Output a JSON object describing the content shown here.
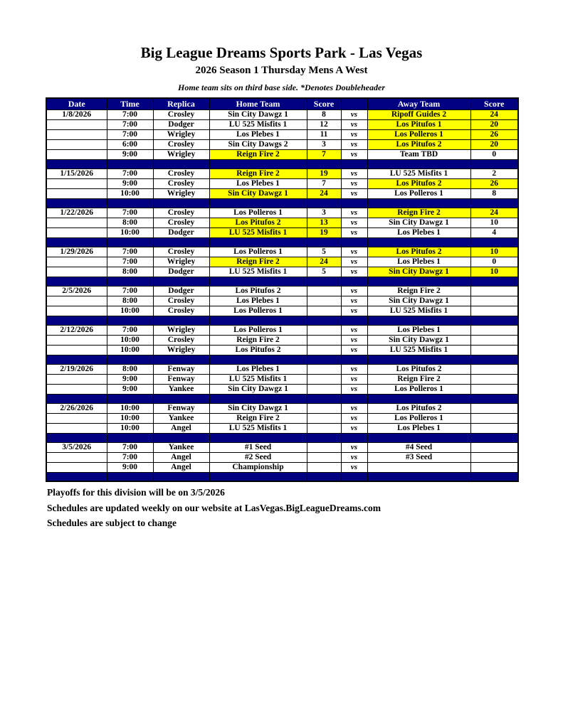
{
  "header": {
    "title": "Big League Dreams Sports Park - Las Vegas",
    "subtitle": "2026 Season 1 Thursday Mens A West",
    "note": "Home team sits on third base side.  *Denotes Doubleheader"
  },
  "table": {
    "headers": [
      "Date",
      "Time",
      "Replica",
      "Home Team",
      "Score",
      "",
      "Away Team",
      "Score"
    ],
    "vs_label": "vs",
    "colors": {
      "header_bg": "#000080",
      "highlight": "#FFFF00",
      "header_text": "#FFFFFF"
    },
    "groups": [
      {
        "date": "1/8/2026",
        "games": [
          {
            "time": "7:00",
            "replica": "Crosley",
            "home": "Sin City Dawgz 1",
            "home_score": "8",
            "away": "Ripoff Guides 2",
            "away_score": "24",
            "winner": "away"
          },
          {
            "time": "7:00",
            "replica": "Dodger",
            "home": "LU 525 Misfits 1",
            "home_score": "12",
            "away": "Los Pitufos 1",
            "away_score": "20",
            "winner": "away"
          },
          {
            "time": "7:00",
            "replica": "Wrigley",
            "home": "Los Plebes 1",
            "home_score": "11",
            "away": "Los Polleros 1",
            "away_score": "26",
            "winner": "away"
          },
          {
            "time": "6:00",
            "replica": "Crosley",
            "home": "Sin City Dawgs 2",
            "home_score": "3",
            "away": "Los Pitufos 2",
            "away_score": "20",
            "winner": "away"
          },
          {
            "time": "9:00",
            "replica": "Wrigley",
            "home": "Reign Fire 2",
            "home_score": "7",
            "away": "Team TBD",
            "away_score": "0",
            "winner": "home"
          }
        ]
      },
      {
        "date": "1/15/2026",
        "games": [
          {
            "time": "7:00",
            "replica": "Crosley",
            "home": "Reign Fire 2",
            "home_score": "19",
            "away": "LU 525 Misfits 1",
            "away_score": "2",
            "winner": "home"
          },
          {
            "time": "9:00",
            "replica": "Crosley",
            "home": "Los Plebes 1",
            "home_score": "7",
            "away": "Los Pitufos 2",
            "away_score": "26",
            "winner": "away"
          },
          {
            "time": "10:00",
            "replica": "Wrigley",
            "home": "Sin City Dawgz 1",
            "home_score": "24",
            "away": "Los Polleros 1",
            "away_score": "8",
            "winner": "home"
          }
        ]
      },
      {
        "date": "1/22/2026",
        "games": [
          {
            "time": "7:00",
            "replica": "Crosley",
            "home": "Los Polleros 1",
            "home_score": "3",
            "away": "Reign Fire 2",
            "away_score": "24",
            "winner": "away"
          },
          {
            "time": "8:00",
            "replica": "Crosley",
            "home": "Los Pitufos 2",
            "home_score": "13",
            "away": "Sin City Dawgz 1",
            "away_score": "10",
            "winner": "home"
          },
          {
            "time": "10:00",
            "replica": "Dodger",
            "home": "LU 525 Misfits 1",
            "home_score": "19",
            "away": "Los Plebes 1",
            "away_score": "4",
            "winner": "home"
          }
        ]
      },
      {
        "date": "1/29/2026",
        "games": [
          {
            "time": "7:00",
            "replica": "Crosley",
            "home": "Los Polleros 1",
            "home_score": "5",
            "away": "Los Pitufos 2",
            "away_score": "10",
            "winner": "away"
          },
          {
            "time": "7:00",
            "replica": "Wrigley",
            "home": "Reign Fire 2",
            "home_score": "24",
            "away": "Los Plebes 1",
            "away_score": "0",
            "winner": "home"
          },
          {
            "time": "8:00",
            "replica": "Dodger",
            "home": "LU 525 Misfits 1",
            "home_score": "5",
            "away": "Sin City Dawgz 1",
            "away_score": "10",
            "winner": "away"
          }
        ]
      },
      {
        "date": "2/5/2026",
        "games": [
          {
            "time": "7:00",
            "replica": "Dodger",
            "home": "Los Pitufos 2",
            "home_score": "",
            "away": "Reign Fire 2",
            "away_score": "",
            "winner": "none"
          },
          {
            "time": "8:00",
            "replica": "Crosley",
            "home": "Los Plebes 1",
            "home_score": "",
            "away": "Sin City Dawgz 1",
            "away_score": "",
            "winner": "none"
          },
          {
            "time": "10:00",
            "replica": "Crosley",
            "home": "Los Polleros 1",
            "home_score": "",
            "away": "LU 525 Misfits 1",
            "away_score": "",
            "winner": "none"
          }
        ]
      },
      {
        "date": "2/12/2026",
        "games": [
          {
            "time": "7:00",
            "replica": "Wrigley",
            "home": "Los Polleros 1",
            "home_score": "",
            "away": "Los Plebes 1",
            "away_score": "",
            "winner": "none"
          },
          {
            "time": "10:00",
            "replica": "Crosley",
            "home": "Reign Fire 2",
            "home_score": "",
            "away": "Sin City Dawgz 1",
            "away_score": "",
            "winner": "none"
          },
          {
            "time": "10:00",
            "replica": "Wrigley",
            "home": "Los Pitufos 2",
            "home_score": "",
            "away": "LU 525 Misfits 1",
            "away_score": "",
            "winner": "none"
          }
        ]
      },
      {
        "date": "2/19/2026",
        "games": [
          {
            "time": "8:00",
            "replica": "Fenway",
            "home": "Los Plebes 1",
            "home_score": "",
            "away": "Los Pitufos 2",
            "away_score": "",
            "winner": "none"
          },
          {
            "time": "9:00",
            "replica": "Fenway",
            "home": "LU 525 Misfits 1",
            "home_score": "",
            "away": "Reign Fire 2",
            "away_score": "",
            "winner": "none"
          },
          {
            "time": "9:00",
            "replica": "Yankee",
            "home": "Sin City Dawgz 1",
            "home_score": "",
            "away": "Los Polleros 1",
            "away_score": "",
            "winner": "none"
          }
        ]
      },
      {
        "date": "2/26/2026",
        "games": [
          {
            "time": "10:00",
            "replica": "Fenway",
            "home": "Sin City Dawgz 1",
            "home_score": "",
            "away": "Los Pitufos 2",
            "away_score": "",
            "winner": "none"
          },
          {
            "time": "10:00",
            "replica": "Yankee",
            "home": "Reign Fire 2",
            "home_score": "",
            "away": "Los Polleros 1",
            "away_score": "",
            "winner": "none"
          },
          {
            "time": "10:00",
            "replica": "Angel",
            "home": "LU 525 Misfits 1",
            "home_score": "",
            "away": "Los Plebes 1",
            "away_score": "",
            "winner": "none"
          }
        ]
      },
      {
        "date": "3/5/2026",
        "games": [
          {
            "time": "7:00",
            "replica": "Yankee",
            "home": "#1 Seed",
            "home_score": "",
            "away": "#4 Seed",
            "away_score": "",
            "winner": "none"
          },
          {
            "time": "7:00",
            "replica": "Angel",
            "home": "#2 Seed",
            "home_score": "",
            "away": "#3 Seed",
            "away_score": "",
            "winner": "none"
          },
          {
            "time": "9:00",
            "replica": "Angel",
            "home": "Championship",
            "home_score": "",
            "away": "",
            "away_score": "",
            "winner": "none"
          }
        ]
      }
    ]
  },
  "footer": {
    "lines": [
      "Playoffs for this division will be on 3/5/2026",
      "Schedules are updated weekly on our website at LasVegas.BigLeagueDreams.com",
      "Schedules are subject to change"
    ]
  }
}
